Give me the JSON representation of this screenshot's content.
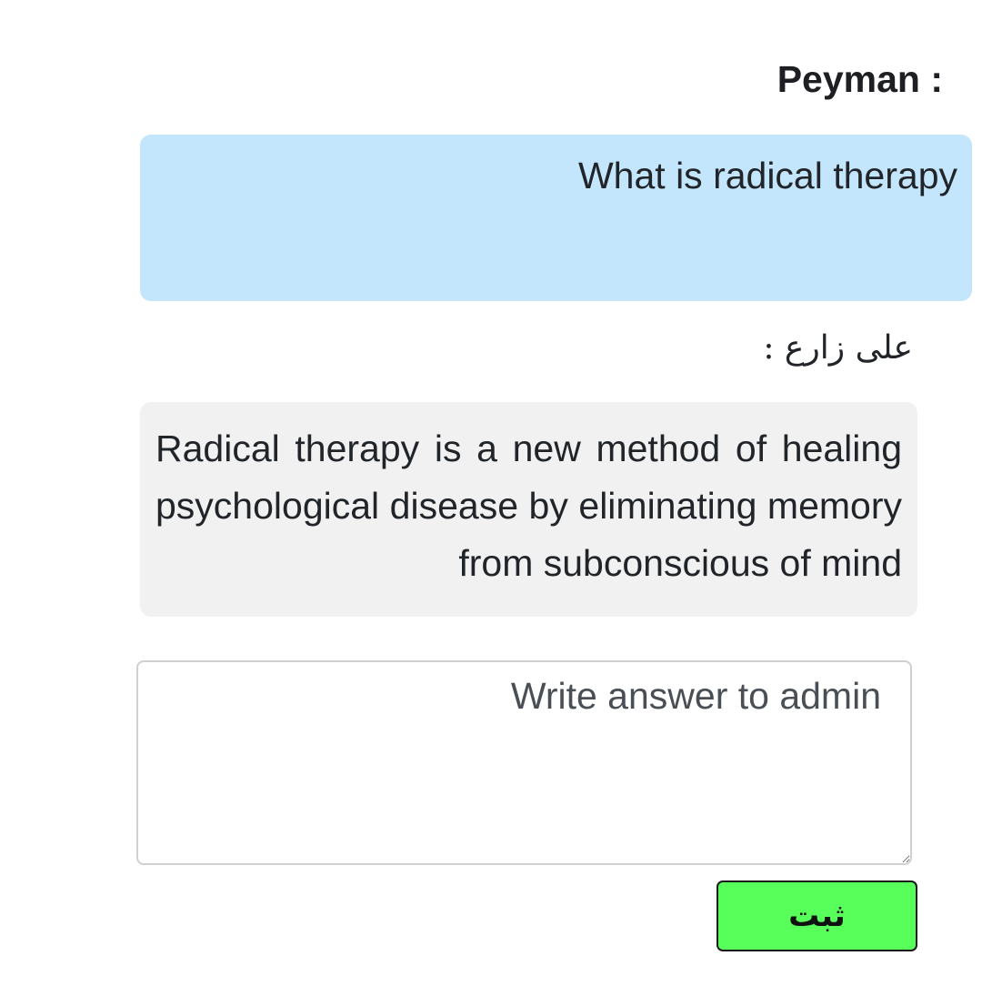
{
  "question": {
    "sender": ": Peyman",
    "text": "What is radical therapy"
  },
  "answer": {
    "sender": "علی زارع :",
    "text": "Radical therapy is a new method of healing psychological disease by eliminating memory from subconscious of mind"
  },
  "reply": {
    "placeholder": "Write answer to admin",
    "value": ""
  },
  "submit": {
    "label": "ثبت"
  },
  "colors": {
    "question_bubble": "#c3e6fc",
    "answer_bubble": "#f1f1f1",
    "submit_button": "#58ff5a"
  }
}
